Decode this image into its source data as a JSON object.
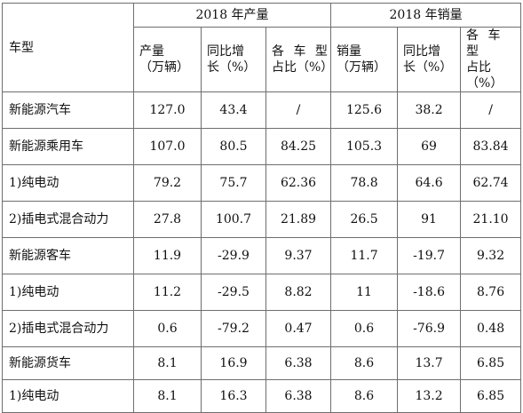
{
  "table": {
    "row_header_label": "车型",
    "groups": [
      {
        "title": "2018 年产量"
      },
      {
        "title": "2018 年销量"
      }
    ],
    "subheaders": [
      {
        "line1": "产量",
        "line2": "（万辆）"
      },
      {
        "line1": "同比增",
        "line2": "长（%）"
      },
      {
        "line1": "各 车 型",
        "line2": "占比（%）"
      },
      {
        "line1": "销量",
        "line2": "（万辆）"
      },
      {
        "line1": "同比增",
        "line2": "长（%）"
      },
      {
        "line1": "各 车 型",
        "line2": "占比（%）"
      }
    ],
    "rows": [
      {
        "label": "新能源汽车",
        "cells": [
          "127.0",
          "43.4",
          "/",
          "125.6",
          "38.2",
          "/"
        ]
      },
      {
        "label": "新能源乘用车",
        "cells": [
          "107.0",
          "80.5",
          "84.25",
          "105.3",
          "69",
          "83.84"
        ]
      },
      {
        "label": "1)纯电动",
        "cells": [
          "79.2",
          "75.7",
          "62.36",
          "78.8",
          "64.6",
          "62.74"
        ]
      },
      {
        "label": "2)插电式混合动力",
        "cells": [
          "27.8",
          "100.7",
          "21.89",
          "26.5",
          "91",
          "21.10"
        ]
      },
      {
        "label": "新能源客车",
        "cells": [
          "11.9",
          "-29.9",
          "9.37",
          "11.7",
          "-19.7",
          "9.32"
        ]
      },
      {
        "label": "1)纯电动",
        "cells": [
          "11.2",
          "-29.5",
          "8.82",
          "11",
          "-18.6",
          "8.76"
        ]
      },
      {
        "label": "2)插电式混合动力",
        "cells": [
          "0.6",
          "-79.2",
          "0.47",
          "0.6",
          "-76.9",
          "0.48"
        ]
      },
      {
        "label": "新能源货车",
        "cells": [
          "8.1",
          "16.9",
          "6.38",
          "8.6",
          "13.7",
          "6.85"
        ]
      },
      {
        "label": "1)纯电动",
        "cells": [
          "8.1",
          "16.3",
          "6.38",
          "8.6",
          "13.2",
          "6.85"
        ]
      }
    ]
  }
}
